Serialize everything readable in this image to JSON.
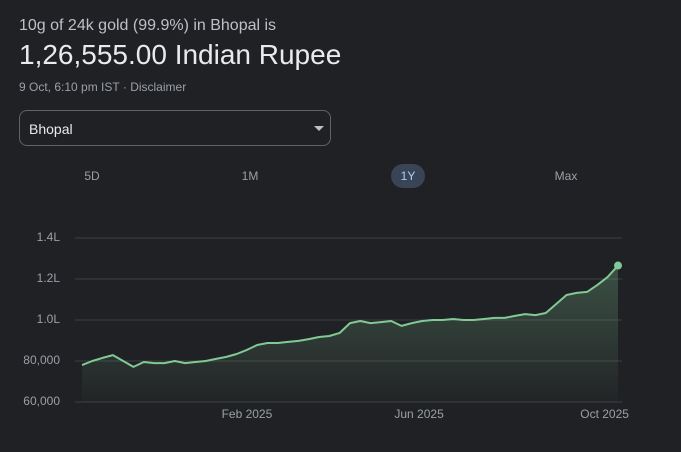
{
  "header": {
    "title": "10g of 24k gold (99.9%) in Bhopal is",
    "price": "1,26,555.00 Indian Rupee",
    "timestamp": "9 Oct, 6:10 pm IST",
    "separator": "·",
    "disclaimer": "Disclaimer"
  },
  "dropdown": {
    "selected": "Bhopal"
  },
  "range_buttons": {
    "options": [
      "5D",
      "1M",
      "1Y",
      "Max"
    ],
    "selected": 2
  },
  "chart_data": {
    "type": "line",
    "color": "#81c995",
    "grid": true,
    "categories": [
      null,
      null,
      null,
      null,
      null,
      null,
      null,
      null,
      null,
      null,
      null,
      null,
      null,
      null,
      null,
      null,
      null,
      null,
      null,
      null,
      null,
      null,
      null,
      null,
      null,
      null,
      null,
      null,
      null,
      null,
      null,
      null,
      null,
      null,
      null,
      null,
      null,
      null,
      null,
      null,
      null,
      null,
      null,
      null,
      null,
      null,
      null,
      null,
      null,
      null,
      null,
      null,
      null
    ],
    "values": [
      78000,
      80000,
      81500,
      82900,
      80000,
      77100,
      79500,
      79000,
      79000,
      80000,
      79000,
      79500,
      80000,
      81000,
      82000,
      83400,
      85400,
      87800,
      88800,
      88800,
      89300,
      89800,
      90700,
      91700,
      92200,
      93700,
      98500,
      99500,
      98500,
      99000,
      99500,
      97100,
      98500,
      99500,
      100000,
      100000,
      100500,
      100000,
      100000,
      100500,
      101000,
      101000,
      102000,
      102900,
      102400,
      103400,
      107800,
      112200,
      113200,
      113700,
      117100,
      121000,
      126555
    ],
    "xticks": [
      {
        "value": 16,
        "label": "Feb 2025"
      },
      {
        "value": 32.7,
        "label": "Jun 2025"
      },
      {
        "value": 50.7,
        "label": "Oct 2025"
      }
    ],
    "ylim": [
      60000,
      140000
    ],
    "yticks": [
      {
        "value": 60000,
        "label": "60,000"
      },
      {
        "value": 80000,
        "label": "80,000"
      },
      {
        "value": 100000,
        "label": "1.0L"
      },
      {
        "value": 120000,
        "label": "1.2L"
      },
      {
        "value": 140000,
        "label": "1.4L"
      }
    ]
  }
}
